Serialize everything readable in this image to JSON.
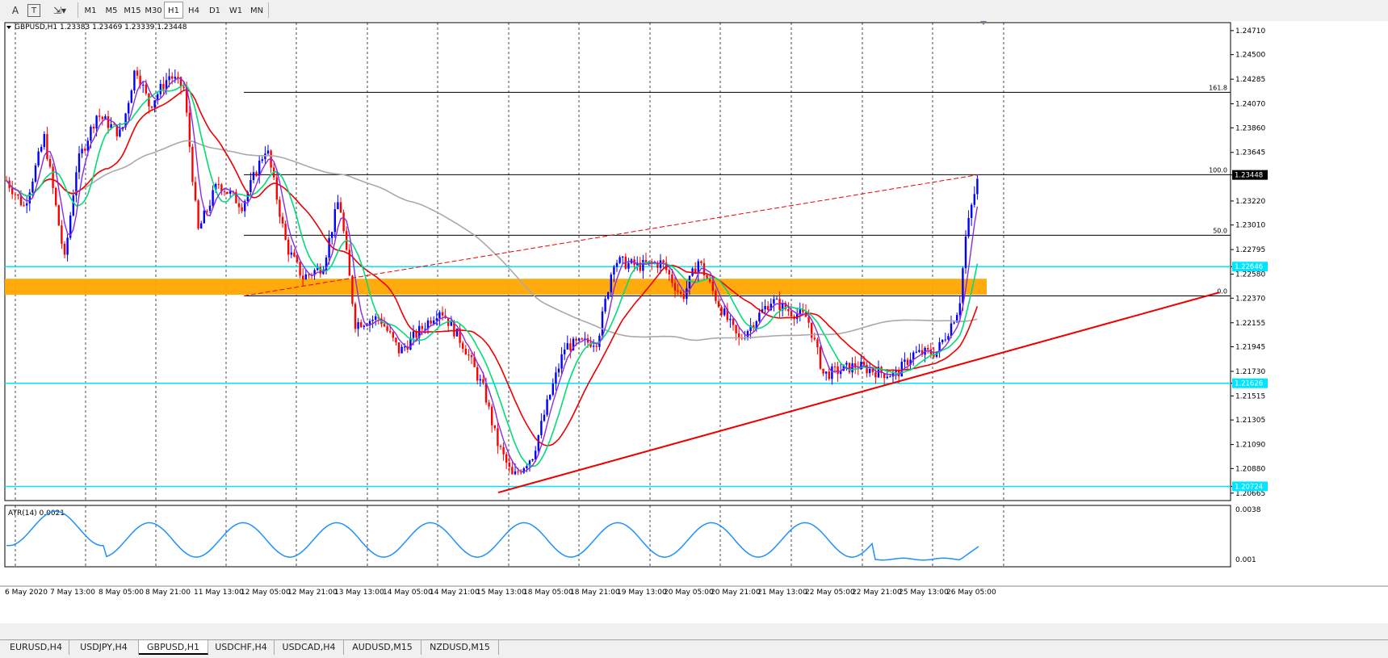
{
  "toolbar": {
    "tools": [
      {
        "name": "text-tool-icon",
        "glyph": "A"
      },
      {
        "name": "text-label-tool-icon",
        "glyph": "T"
      },
      {
        "name": "shapes-tool-icon",
        "glyph": "⇲▾"
      }
    ],
    "timeframes": [
      "M1",
      "M5",
      "M15",
      "M30",
      "H1",
      "H4",
      "D1",
      "W1",
      "MN"
    ],
    "active_timeframe": "H1"
  },
  "chart": {
    "header": "GBPUSD,H1  1.23383 1.23469 1.23339 1.23448",
    "price_axis": [
      "1.24710",
      "1.24500",
      "1.24285",
      "1.24070",
      "1.23860",
      "1.23645",
      "1.23448",
      "1.23220",
      "1.23010",
      "1.22795",
      "1.22646",
      "1.22580",
      "1.22370",
      "1.22155",
      "1.21945",
      "1.21730",
      "1.21626",
      "1.21515",
      "1.21305",
      "1.21090",
      "1.20880",
      "1.20724",
      "1.20665"
    ],
    "price_highlights": [
      {
        "value": "1.23448",
        "bg": "#000000",
        "fg": "#ffffff"
      },
      {
        "value": "1.22646",
        "bg": "#00e5ff",
        "fg": "#ffffff"
      },
      {
        "value": "1.21626",
        "bg": "#00e5ff",
        "fg": "#ffffff"
      },
      {
        "value": "1.20724",
        "bg": "#00e5ff",
        "fg": "#ffffff"
      }
    ],
    "fib_levels": [
      {
        "label": "161.8",
        "price": 1.2417
      },
      {
        "label": "100.0",
        "price": 1.2345
      },
      {
        "label": "50.0",
        "price": 1.2292
      },
      {
        "label": "0.0",
        "price": 1.2239
      }
    ],
    "horizontal_lines": [
      1.22646,
      1.21626,
      1.20724
    ],
    "zone": {
      "top": 1.2254,
      "bottom": 1.224,
      "color": "#ffa500"
    },
    "time_axis": [
      "6 May 2020",
      "7 May 13:00",
      "8 May 05:00",
      "8 May 21:00",
      "11 May 13:00",
      "12 May 05:00",
      "12 May 21:00",
      "13 May 13:00",
      "14 May 05:00",
      "14 May 21:00",
      "15 May 13:00",
      "18 May 05:00",
      "18 May 21:00",
      "19 May 13:00",
      "20 May 05:00",
      "20 May 21:00",
      "21 May 13:00",
      "22 May 05:00",
      "22 May 21:00",
      "25 May 13:00",
      "26 May 05:00"
    ],
    "indicator_label": "ATR(14) 0.0021",
    "indicator_axis": [
      "0.0038",
      "0.001"
    ],
    "colors": {
      "bull": "#0000ff",
      "bear": "#ff0000",
      "ma_fast": "#8a2be2",
      "ma_green": "#00dd77",
      "ma_red": "#ee0000",
      "ma_slow": "#a9a9a9",
      "trendline": "#ee0000",
      "fib": "#000000",
      "atr": "#1e90ff",
      "grid": "#000000"
    }
  },
  "tabs": [
    "EURUSD,H4",
    "USDJPY,H4",
    "GBPUSD,H1",
    "USDCHF,H4",
    "USDCAD,H4",
    "AUDUSD,M15",
    "NZDUSD,M15"
  ],
  "active_tab": "GBPUSD,H1"
}
